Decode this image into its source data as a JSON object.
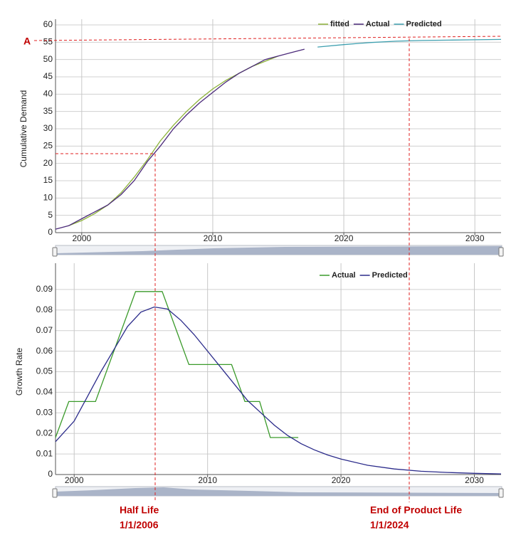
{
  "chart_data": [
    {
      "type": "line",
      "ylabel": "Cumulative Demand",
      "xlim": [
        1998,
        2032
      ],
      "xticks": [
        2000,
        2010,
        2020,
        2030
      ],
      "ylim": [
        0,
        60
      ],
      "yticks": [
        0,
        5,
        10,
        15,
        20,
        25,
        30,
        35,
        40,
        45,
        50,
        55,
        60
      ],
      "grid": true,
      "series": [
        {
          "name": "fitted",
          "color": "#8db33a",
          "x": [
            1999,
            2000,
            2001,
            2002,
            2003,
            2004,
            2005,
            2006,
            2007,
            2008,
            2009,
            2010,
            2011,
            2012,
            2013,
            2014,
            2015
          ],
          "values": [
            2,
            3.5,
            5.5,
            8,
            11.5,
            16,
            21,
            26.5,
            31,
            35,
            38.5,
            41.5,
            44,
            46,
            48,
            49.5,
            51
          ]
        },
        {
          "name": "Actual",
          "color": "#4b2a7a",
          "x": [
            1998,
            1999,
            2000,
            2001,
            2002,
            2003,
            2004,
            2005,
            2006,
            2007,
            2008,
            2009,
            2010,
            2011,
            2012,
            2013,
            2014,
            2015,
            2016,
            2017
          ],
          "values": [
            1,
            2,
            4,
            6,
            8,
            11,
            15,
            20.5,
            25,
            30,
            34,
            37.5,
            40.5,
            43.5,
            46,
            48,
            50,
            51,
            52,
            53
          ]
        },
        {
          "name": "Predicted",
          "color": "#3fa0b0",
          "x": [
            2018,
            2020,
            2022,
            2024,
            2026,
            2028,
            2030,
            2032
          ],
          "values": [
            53.6,
            54.3,
            54.9,
            55.3,
            55.5,
            55.6,
            55.7,
            55.8
          ]
        }
      ]
    },
    {
      "type": "line",
      "ylabel": "Growth Rate",
      "xlim": [
        1998.6,
        2032
      ],
      "xticks": [
        2000,
        2010,
        2020,
        2030
      ],
      "ylim": [
        0,
        0.1
      ],
      "yticks": [
        0,
        0.01,
        0.02,
        0.03,
        0.04,
        0.05,
        0.06,
        0.07,
        0.08,
        0.09
      ],
      "grid": true,
      "series": [
        {
          "name": "Actual",
          "color": "#3a9a2a",
          "x": [
            1998.6,
            1999.6,
            2001.6,
            2004.6,
            2006.6,
            2008.6,
            2011.8,
            2012.8,
            2013.9,
            2014.7,
            2016.8
          ],
          "values": [
            0.018,
            0.0355,
            0.0355,
            0.089,
            0.089,
            0.0535,
            0.0535,
            0.0355,
            0.0355,
            0.018,
            0.018
          ]
        },
        {
          "name": "Predicted",
          "color": "#2a2a8a",
          "x": [
            1998.6,
            2000,
            2001,
            2002,
            2003,
            2004,
            2005,
            2006,
            2007,
            2008,
            2009,
            2010,
            2011,
            2012,
            2013,
            2014,
            2015,
            2016,
            2017,
            2018,
            2019,
            2020,
            2022,
            2024,
            2026,
            2028,
            2030,
            2032
          ],
          "values": [
            0.016,
            0.026,
            0.038,
            0.05,
            0.061,
            0.072,
            0.079,
            0.0815,
            0.0805,
            0.075,
            0.068,
            0.06,
            0.052,
            0.044,
            0.036,
            0.03,
            0.024,
            0.019,
            0.015,
            0.012,
            0.0095,
            0.0075,
            0.0045,
            0.0027,
            0.0016,
            0.001,
            0.0006,
            0.0003
          ]
        }
      ]
    }
  ],
  "annotations": {
    "a_label": "A",
    "half_life": "Half Life",
    "half_life_date": "1/1/2006",
    "end_life": "End of Product Life",
    "end_life_date": "1/1/2024"
  }
}
